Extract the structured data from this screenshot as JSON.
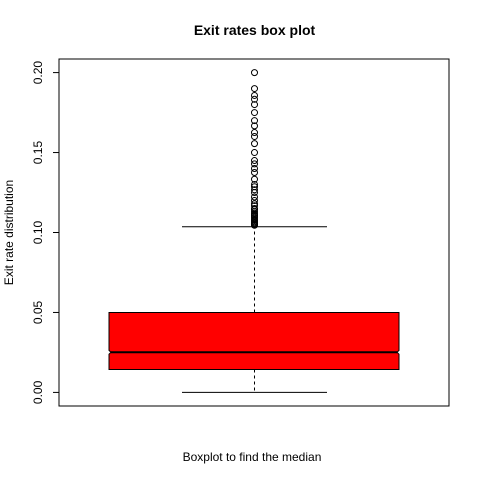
{
  "chart_data": {
    "type": "box",
    "title": "Exit rates box plot",
    "xlabel": "Boxplot to find the median",
    "ylabel": "Exit rate distribution",
    "ylim": [
      -0.0085,
      0.2085
    ],
    "y_ticks": [
      0.0,
      0.05,
      0.1,
      0.15,
      0.2
    ],
    "y_tick_labels": [
      "0.00",
      "0.05",
      "0.10",
      "0.15",
      "0.20"
    ],
    "notched": true,
    "box": {
      "whisker_low": 0.0,
      "q1": 0.0143,
      "median": 0.0251,
      "q3": 0.05,
      "whisker_high": 0.1036
    },
    "outliers": [
      0.1045,
      0.105,
      0.1055,
      0.106,
      0.1067,
      0.1075,
      0.108,
      0.109,
      0.11,
      0.1105,
      0.1111,
      0.112,
      0.113,
      0.1143,
      0.115,
      0.1167,
      0.118,
      0.12,
      0.1222,
      0.125,
      0.1267,
      0.1286,
      0.13,
      0.1333,
      0.1375,
      0.14,
      0.1429,
      0.145,
      0.15,
      0.1556,
      0.16,
      0.1625,
      0.1667,
      0.17,
      0.175,
      0.18,
      0.1833,
      0.1857,
      0.19,
      0.2
    ],
    "colors": {
      "box_fill": "#ff0000",
      "stroke": "#000000",
      "background": "#ffffff"
    }
  }
}
